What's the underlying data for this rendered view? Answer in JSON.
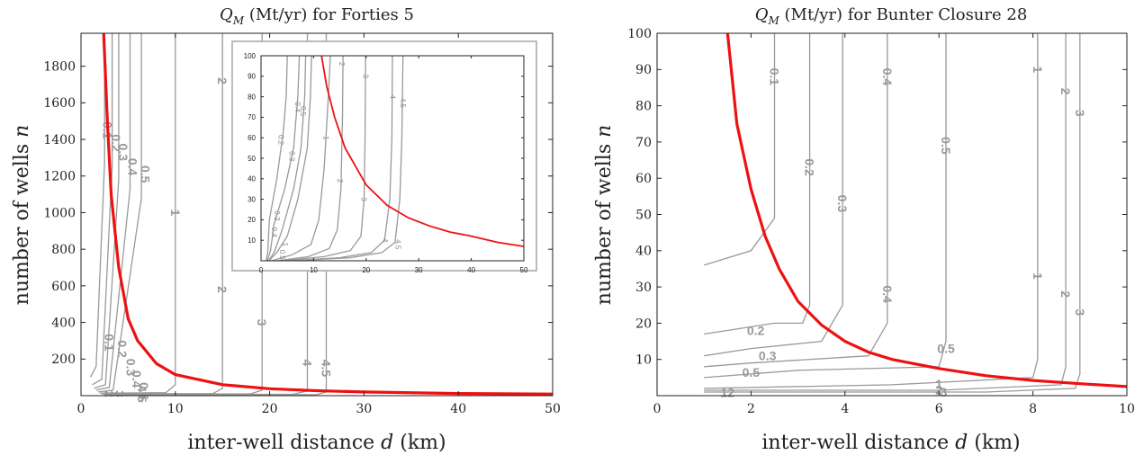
{
  "chart_data": [
    {
      "type": "line",
      "title_prefix": "Q",
      "title_sub": "M",
      "title_rest": " (Mt/yr) for Forties 5",
      "xlabel_text": "inter-well distance ",
      "xlabel_var": "d",
      "xlabel_unit": " (km)",
      "ylabel_text": "number of wells ",
      "ylabel_var": "n",
      "xlim": [
        0,
        50
      ],
      "ylim": [
        0,
        1980
      ],
      "xticks": [
        0,
        10,
        20,
        30,
        40,
        50
      ],
      "yticks": [
        200,
        400,
        600,
        800,
        1000,
        1200,
        1400,
        1600,
        1800
      ],
      "grid": false,
      "series": [
        {
          "role": "capacity-boundary",
          "color": "#ee1111",
          "x": [
            2.4,
            2.8,
            3.2,
            4,
            5,
            6,
            8,
            10,
            15,
            20,
            25,
            30,
            40,
            50
          ],
          "y": [
            1980,
            1500,
            1100,
            700,
            420,
            300,
            175,
            115,
            60,
            38,
            27,
            20,
            12,
            9
          ]
        }
      ],
      "contours": [
        {
          "label": "0.1",
          "x": [
            1.0,
            1.6,
            2.5,
            2.5
          ],
          "y": [
            100,
            160,
            1280,
            1980
          ]
        },
        {
          "label": "0.2",
          "x": [
            1.2,
            2.2,
            3.3,
            3.3
          ],
          "y": [
            60,
            90,
            1250,
            1980
          ]
        },
        {
          "label": "0.3",
          "x": [
            1.4,
            2.6,
            4.0,
            4.0
          ],
          "y": [
            40,
            60,
            1180,
            1980
          ]
        },
        {
          "label": "0.4",
          "x": [
            1.6,
            3.0,
            5.2,
            5.2
          ],
          "y": [
            30,
            45,
            1130,
            1980
          ]
        },
        {
          "label": "0.5",
          "x": [
            1.8,
            3.4,
            6.4,
            6.4
          ],
          "y": [
            20,
            30,
            1080,
            1980
          ]
        },
        {
          "label": "1",
          "x": [
            2.0,
            9.0,
            10.0,
            10.0
          ],
          "y": [
            14,
            16,
            60,
            1980
          ]
        },
        {
          "label": "2",
          "x": [
            2.2,
            14.0,
            15.0,
            15.0
          ],
          "y": [
            10,
            12,
            40,
            1980
          ]
        },
        {
          "label": "3",
          "x": [
            2.4,
            18.0,
            19.2,
            19.2
          ],
          "y": [
            8,
            10,
            30,
            1980
          ]
        },
        {
          "label": "4",
          "x": [
            2.6,
            22.5,
            24.0,
            24.0
          ],
          "y": [
            6,
            8,
            25,
            1980
          ]
        },
        {
          "label": "4.5",
          "x": [
            2.8,
            25.0,
            26.0,
            26.0
          ],
          "y": [
            5,
            6,
            20,
            1980
          ]
        }
      ],
      "contour_labels": [
        {
          "text": "0.1",
          "x": 2.8,
          "y": 1450
        },
        {
          "text": "0.2",
          "x": 3.7,
          "y": 1380
        },
        {
          "text": "0.3",
          "x": 4.5,
          "y": 1330
        },
        {
          "text": "0.4",
          "x": 5.5,
          "y": 1250
        },
        {
          "text": "0.5",
          "x": 6.8,
          "y": 1210
        },
        {
          "text": "1",
          "x": 10.0,
          "y": 1000
        },
        {
          "text": "2",
          "x": 15.0,
          "y": 1720
        },
        {
          "text": "2",
          "x": 15.0,
          "y": 580
        },
        {
          "text": "3",
          "x": 19.2,
          "y": 400
        },
        {
          "text": "4",
          "x": 24.0,
          "y": 180
        },
        {
          "text": "4.5",
          "x": 26.0,
          "y": 150
        },
        {
          "text": "0.1",
          "x": 3.0,
          "y": 290
        },
        {
          "text": "0.2",
          "x": 4.4,
          "y": 255
        },
        {
          "text": "0.3",
          "x": 5.3,
          "y": 155
        },
        {
          "text": "0.4",
          "x": 5.9,
          "y": 90
        },
        {
          "text": "0.5",
          "x": 6.7,
          "y": 25
        },
        {
          "text": "2",
          "x": 3.0,
          "y": 10
        },
        {
          "text": "3",
          "x": 4.1,
          "y": 10
        },
        {
          "text": "4.5",
          "x": 6.5,
          "y": 10
        }
      ],
      "inset": {
        "xlim": [
          0,
          50
        ],
        "ylim": [
          0,
          100
        ],
        "xticks": [
          0,
          10,
          20,
          30,
          40,
          50
        ],
        "yticks": [
          10,
          20,
          30,
          40,
          50,
          60,
          70,
          80,
          90,
          100
        ],
        "boundary": {
          "x": [
            11.5,
            12.5,
            14,
            16,
            18,
            20,
            24,
            28,
            32,
            36,
            40,
            45,
            50
          ],
          "y": [
            100,
            85,
            70,
            55,
            46,
            37,
            27,
            21,
            17,
            14,
            12,
            9,
            7
          ]
        },
        "contours": [
          {
            "label": "0.2",
            "x": [
              1.0,
              1.3,
              1.6,
              3.0,
              4.2,
              4.8,
              5.0
            ],
            "y": [
              0,
              5,
              20,
              40,
              62,
              80,
              100
            ]
          },
          {
            "label": "0.3",
            "x": [
              1.2,
              1.8,
              2.5,
              4.5,
              6.2,
              7.0,
              7.3
            ],
            "y": [
              0,
              5,
              18,
              35,
              55,
              80,
              100
            ]
          },
          {
            "label": "0.4",
            "x": [
              1.4,
              2.5,
              4.0,
              6.2,
              7.6,
              8.3,
              8.5
            ],
            "y": [
              0,
              4,
              15,
              35,
              55,
              80,
              100
            ]
          },
          {
            "label": "0.5",
            "x": [
              1.5,
              3.0,
              5.0,
              7.0,
              8.8,
              9.4,
              9.6
            ],
            "y": [
              0,
              4,
              12,
              30,
              55,
              80,
              100
            ]
          },
          {
            "label": "1",
            "x": [
              2.0,
              6.0,
              9.5,
              11.0,
              12.0,
              12.8,
              13.2
            ],
            "y": [
              0,
              3,
              8,
              20,
              45,
              80,
              100
            ]
          },
          {
            "label": "2",
            "x": [
              3.0,
              9.0,
              13.0,
              14.5,
              15.2,
              15.5,
              15.6
            ],
            "y": [
              0,
              2,
              6,
              15,
              35,
              70,
              100
            ]
          },
          {
            "label": "3",
            "x": [
              4.0,
              12.0,
              17.0,
              19.0,
              19.6,
              19.8,
              19.9
            ],
            "y": [
              0,
              2,
              5,
              12,
              30,
              60,
              100
            ]
          },
          {
            "label": "4",
            "x": [
              5.0,
              15.0,
              21.0,
              23.5,
              24.5,
              24.9,
              25.0
            ],
            "y": [
              0,
              1.5,
              4,
              10,
              30,
              60,
              100
            ]
          },
          {
            "label": "4.5",
            "x": [
              6.0,
              17.0,
              23.0,
              25.5,
              26.4,
              26.8,
              27.0
            ],
            "y": [
              0,
              1.5,
              4,
              9,
              30,
              60,
              100
            ]
          }
        ],
        "contour_labels": [
          {
            "text": "2",
            "x": 15.3,
            "y": 96
          },
          {
            "text": "3",
            "x": 19.9,
            "y": 90
          },
          {
            "text": "4",
            "x": 25.0,
            "y": 80
          },
          {
            "text": "4.5",
            "x": 27.0,
            "y": 77
          },
          {
            "text": "1",
            "x": 12.3,
            "y": 60
          },
          {
            "text": "0.2",
            "x": 3.8,
            "y": 59
          },
          {
            "text": "0.3",
            "x": 5.8,
            "y": 51
          },
          {
            "text": "0.4",
            "x": 6.9,
            "y": 75
          },
          {
            "text": "0.5",
            "x": 8.0,
            "y": 73
          },
          {
            "text": "2",
            "x": 15.0,
            "y": 39
          },
          {
            "text": "3",
            "x": 19.5,
            "y": 30
          },
          {
            "text": "4",
            "x": 23.5,
            "y": 10
          },
          {
            "text": "4.5",
            "x": 26.0,
            "y": 8
          },
          {
            "text": "0.4",
            "x": 2.5,
            "y": 14
          },
          {
            "text": "1",
            "x": 4.5,
            "y": 8
          },
          {
            "text": "0.3",
            "x": 3.0,
            "y": 22
          },
          {
            "text": "0.5",
            "x": 4.0,
            "y": 3
          }
        ]
      }
    },
    {
      "type": "line",
      "title_prefix": "Q",
      "title_sub": "M",
      "title_rest": " (Mt/yr) for Bunter Closure 28",
      "xlabel_text": "inter-well distance ",
      "xlabel_var": "d",
      "xlabel_unit": " (km)",
      "ylabel_text": "number of wells ",
      "ylabel_var": "n",
      "xlim": [
        0,
        10
      ],
      "ylim": [
        0,
        100
      ],
      "xticks": [
        0,
        2,
        4,
        6,
        8,
        10
      ],
      "yticks": [
        10,
        20,
        30,
        40,
        50,
        60,
        70,
        80,
        90,
        100
      ],
      "grid": false,
      "series": [
        {
          "role": "capacity-boundary",
          "color": "#ee1111",
          "x": [
            1.5,
            1.7,
            2.0,
            2.3,
            2.6,
            3.0,
            3.5,
            4.0,
            4.5,
            5.0,
            6.0,
            7.0,
            8.0,
            9.0,
            10.0
          ],
          "y": [
            100,
            75,
            57,
            44,
            35,
            26,
            19.5,
            15,
            12,
            10,
            7.5,
            5.5,
            4.2,
            3.3,
            2.5
          ]
        }
      ],
      "contours": [
        {
          "label": "0.1",
          "x": [
            1.0,
            2.0,
            2.5,
            2.5
          ],
          "y": [
            36,
            40,
            49,
            100
          ]
        },
        {
          "label": "0.2",
          "x": [
            1.0,
            2.5,
            3.1,
            3.25,
            3.25
          ],
          "y": [
            17,
            20,
            20,
            25,
            100
          ]
        },
        {
          "label": "0.3",
          "x": [
            1.0,
            2.0,
            3.5,
            3.95,
            3.95
          ],
          "y": [
            11,
            13,
            15,
            25,
            100
          ]
        },
        {
          "label": "0.4",
          "x": [
            1.0,
            2.0,
            4.5,
            4.9,
            4.9
          ],
          "y": [
            8,
            9,
            11,
            20,
            100
          ]
        },
        {
          "label": "0.5",
          "x": [
            1.0,
            3.0,
            6.0,
            6.15,
            6.15
          ],
          "y": [
            5,
            7,
            8,
            15,
            100
          ]
        },
        {
          "label": "1",
          "x": [
            1.0,
            5.0,
            8.0,
            8.1,
            8.1
          ],
          "y": [
            2,
            3,
            5,
            10,
            100
          ]
        },
        {
          "label": "2",
          "x": [
            1.0,
            6.0,
            8.6,
            8.7,
            8.7
          ],
          "y": [
            1.5,
            1.5,
            3,
            8,
            100
          ]
        },
        {
          "label": "3",
          "x": [
            1.0,
            7.0,
            8.9,
            9.0,
            9.0
          ],
          "y": [
            1,
            1,
            2,
            6,
            100
          ]
        }
      ],
      "contour_labels": [
        {
          "text": "0.1",
          "x": 2.5,
          "y": 88
        },
        {
          "text": "0.2",
          "x": 3.25,
          "y": 63
        },
        {
          "text": "0.3",
          "x": 3.95,
          "y": 53
        },
        {
          "text": "0.4",
          "x": 4.9,
          "y": 88
        },
        {
          "text": "0.4",
          "x": 4.9,
          "y": 28
        },
        {
          "text": "0.5",
          "x": 6.15,
          "y": 69
        },
        {
          "text": "0.5",
          "x": 6.15,
          "y": 13
        },
        {
          "text": "1",
          "x": 8.1,
          "y": 90
        },
        {
          "text": "1",
          "x": 8.1,
          "y": 33
        },
        {
          "text": "2",
          "x": 8.7,
          "y": 84
        },
        {
          "text": "2",
          "x": 8.7,
          "y": 28
        },
        {
          "text": "3",
          "x": 9.0,
          "y": 78
        },
        {
          "text": "3",
          "x": 9.0,
          "y": 23
        },
        {
          "text": "0.2",
          "x": 2.1,
          "y": 18
        },
        {
          "text": "0.3",
          "x": 2.35,
          "y": 11
        },
        {
          "text": "0.5",
          "x": 2.0,
          "y": 6.5
        },
        {
          "text": "1",
          "x": 6.0,
          "y": 3.2
        },
        {
          "text": "2",
          "x": 6.0,
          "y": 1.6
        },
        {
          "text": "12",
          "x": 1.5,
          "y": 0.9
        },
        {
          "text": "3",
          "x": 6.1,
          "y": 1.0
        }
      ]
    }
  ]
}
